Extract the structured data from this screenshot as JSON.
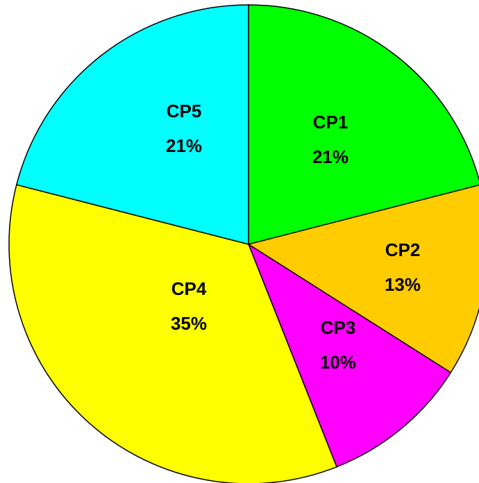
{
  "chart_data": {
    "type": "pie",
    "categories": [
      "CP1",
      "CP2",
      "CP3",
      "CP4",
      "CP5"
    ],
    "values": [
      21,
      13,
      10,
      35,
      21
    ],
    "value_labels": [
      "21%",
      "13%",
      "10%",
      "35%",
      "21%"
    ],
    "colors": [
      "#00ff00",
      "#ffcc00",
      "#ff00ff",
      "#ffff00",
      "#00ffff"
    ]
  }
}
